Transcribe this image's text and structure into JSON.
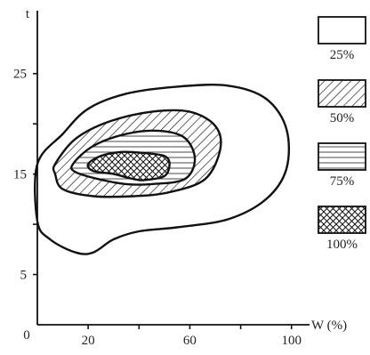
{
  "chart_data": {
    "type": "contour",
    "xlabel": "W (%)",
    "ylabel": "t",
    "x_origin_label": "0",
    "xlim": [
      0,
      105
    ],
    "ylim": [
      0,
      31
    ],
    "x_ticks": [
      20,
      40,
      60,
      80,
      100
    ],
    "x_tick_labels": [
      "20",
      "",
      "60",
      "",
      "100"
    ],
    "y_ticks": [
      5,
      10,
      15,
      20,
      25
    ],
    "y_tick_labels": [
      "5",
      "",
      "15",
      "",
      "25"
    ],
    "grid": false,
    "legend_position": "right",
    "series": [
      {
        "name": "25%",
        "fill": "none",
        "boundary": [
          [
            0,
            16
          ],
          [
            10,
            19
          ],
          [
            20,
            21.5
          ],
          [
            35,
            23
          ],
          [
            55,
            23.7
          ],
          [
            75,
            23.8
          ],
          [
            90,
            22.5
          ],
          [
            98,
            19.5
          ],
          [
            98,
            15.5
          ],
          [
            90,
            12.5
          ],
          [
            75,
            10.5
          ],
          [
            55,
            9.7
          ],
          [
            40,
            9.3
          ],
          [
            30,
            8.5
          ],
          [
            22,
            7.2
          ],
          [
            15,
            7.2
          ],
          [
            5,
            8.5
          ],
          [
            0,
            10.3
          ]
        ]
      },
      {
        "name": "50%",
        "fill": "hatch",
        "boundary": [
          [
            7,
            16
          ],
          [
            15,
            18.5
          ],
          [
            28,
            20.2
          ],
          [
            45,
            21.2
          ],
          [
            60,
            21.2
          ],
          [
            70,
            19.8
          ],
          [
            72,
            17.5
          ],
          [
            66,
            14.5
          ],
          [
            52,
            13.2
          ],
          [
            38,
            12.8
          ],
          [
            22,
            12.8
          ],
          [
            10,
            13.5
          ],
          [
            7,
            15
          ]
        ]
      },
      {
        "name": "75%",
        "fill": "lines",
        "boundary": [
          [
            14,
            16
          ],
          [
            22,
            17.8
          ],
          [
            35,
            19
          ],
          [
            48,
            19.3
          ],
          [
            58,
            18.6
          ],
          [
            62,
            16.5
          ],
          [
            58,
            14.5
          ],
          [
            45,
            14
          ],
          [
            35,
            14
          ],
          [
            24,
            14.5
          ],
          [
            15,
            15.2
          ]
        ]
      },
      {
        "name": "100%",
        "fill": "crosshatch",
        "boundary": [
          [
            20,
            16
          ],
          [
            25,
            16.8
          ],
          [
            33,
            17.2
          ],
          [
            42,
            17.1
          ],
          [
            50,
            16.8
          ],
          [
            52,
            16
          ],
          [
            50,
            14.8
          ],
          [
            42,
            14.4
          ],
          [
            38,
            14.5
          ],
          [
            30,
            15
          ],
          [
            22,
            15.3
          ]
        ]
      }
    ]
  }
}
